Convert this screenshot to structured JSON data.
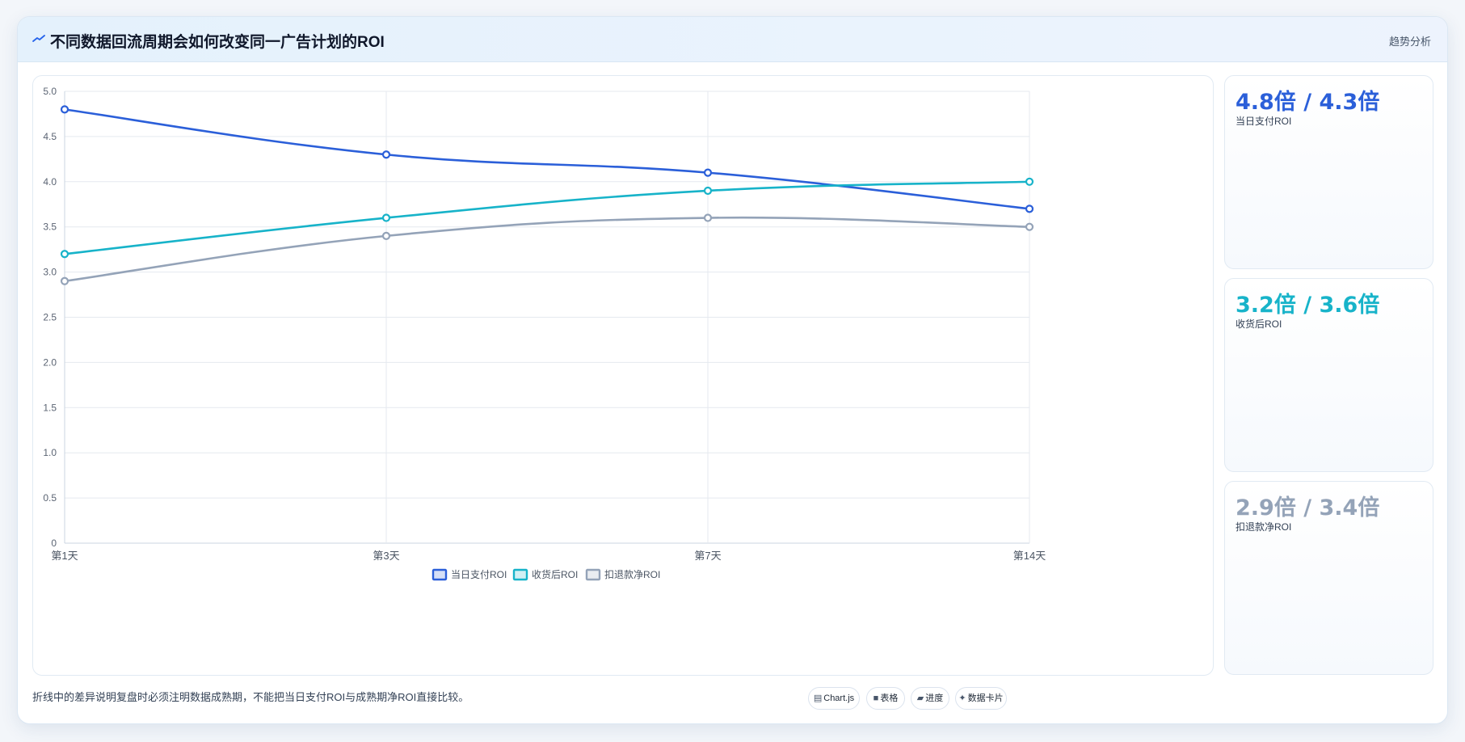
{
  "header": {
    "title": "不同数据回流周期会如何改变同一广告计划的ROI",
    "badge": "趋势分析",
    "icon": "trend-line-icon"
  },
  "kpis": [
    {
      "value": "4.8倍 / 4.3倍",
      "label": "当日支付ROI",
      "color": "#2b5fd9"
    },
    {
      "value": "3.2倍 / 3.6倍",
      "label": "收货后ROI",
      "color": "#17b3c9"
    },
    {
      "value": "2.9倍 / 3.4倍",
      "label": "扣退款净ROI",
      "color": "#94a3b8"
    }
  ],
  "footer": {
    "note": "折线中的差异说明复盘时必须注明数据成熟期，不能把当日支付ROI与成熟期净ROI直接比较。",
    "pills": [
      {
        "icon": "chart-icon",
        "label": "Chart.js"
      },
      {
        "icon": "table-icon",
        "label": "表格"
      },
      {
        "icon": "progress-icon",
        "label": "进度"
      },
      {
        "icon": "card-icon",
        "label": "数据卡片"
      }
    ]
  },
  "chart_data": {
    "type": "line",
    "x": [
      "第1天",
      "第3天",
      "第7天",
      "第14天"
    ],
    "ylim": [
      0,
      5
    ],
    "yticks": [
      "0",
      "0.5",
      "1.0",
      "1.5",
      "2.0",
      "2.5",
      "3.0",
      "3.5",
      "4.0",
      "4.5",
      "5.0"
    ],
    "grid": true,
    "legend": "bottom-center",
    "series": [
      {
        "name": "当日支付ROI",
        "color": "#2b5fd9",
        "values": [
          4.8,
          4.3,
          4.1,
          3.7
        ]
      },
      {
        "name": "收货后ROI",
        "color": "#17b3c9",
        "values": [
          3.2,
          3.6,
          3.9,
          4.0
        ]
      },
      {
        "name": "扣退款净ROI",
        "color": "#94a3b8",
        "values": [
          2.9,
          3.4,
          3.6,
          3.5
        ]
      }
    ]
  }
}
